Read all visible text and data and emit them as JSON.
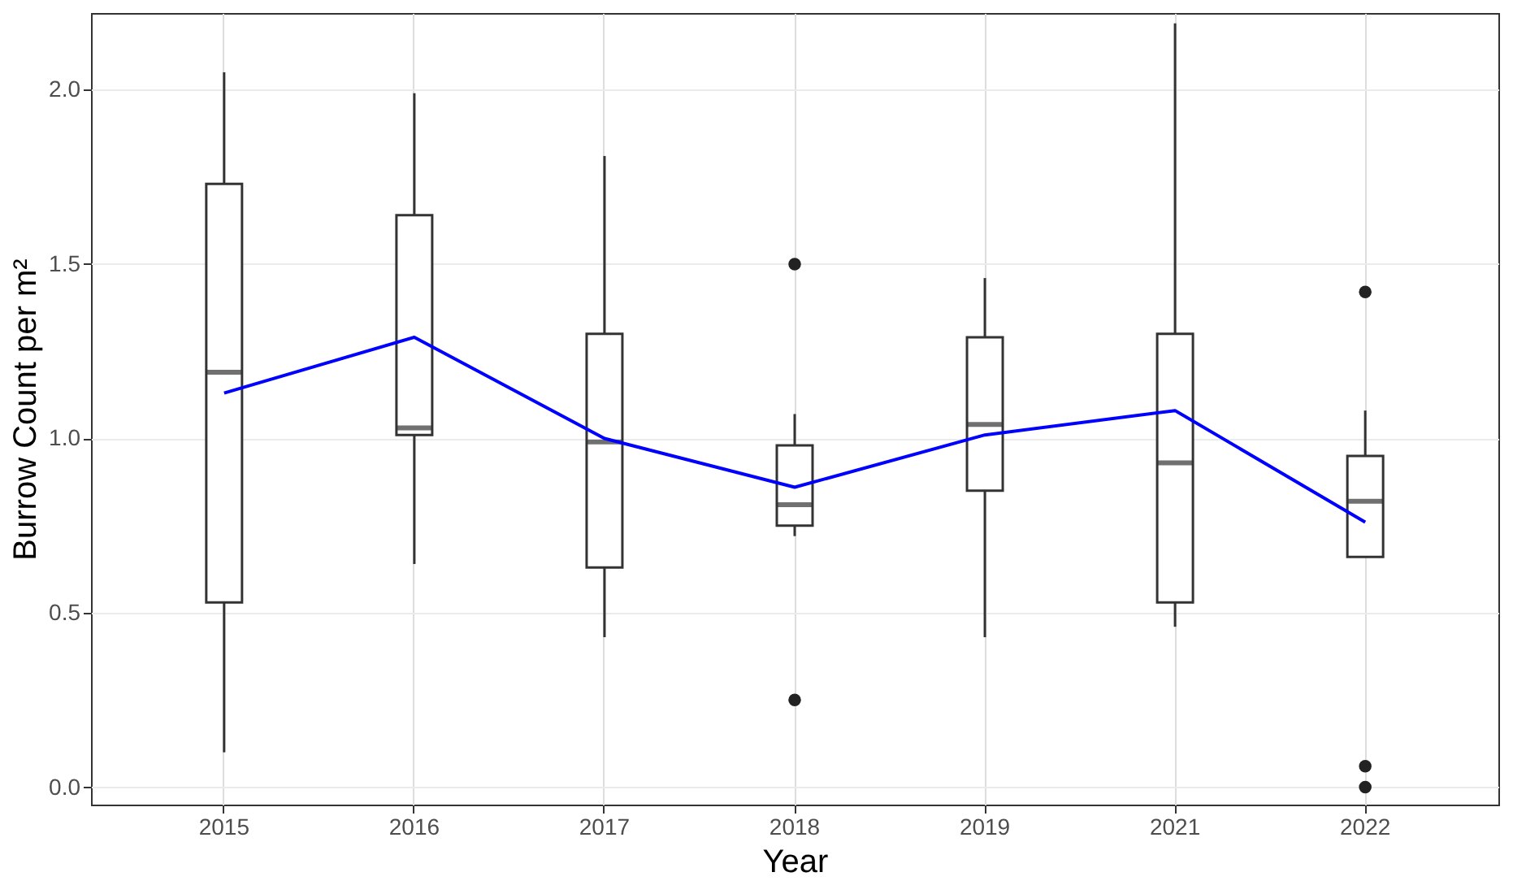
{
  "chart_data": {
    "type": "box",
    "xlabel": "Year",
    "ylabel": "Burrow Count per m²",
    "categories": [
      "2015",
      "2016",
      "2017",
      "2018",
      "2019",
      "2021",
      "2022"
    ],
    "boxes": [
      {
        "low": 0.1,
        "q1": 0.53,
        "median": 1.19,
        "q3": 1.73,
        "high": 2.05
      },
      {
        "low": 0.64,
        "q1": 1.01,
        "median": 1.03,
        "q3": 1.64,
        "high": 1.99
      },
      {
        "low": 0.43,
        "q1": 0.63,
        "median": 0.99,
        "q3": 1.3,
        "high": 1.81
      },
      {
        "low": 0.72,
        "q1": 0.75,
        "median": 0.81,
        "q3": 0.98,
        "high": 1.07,
        "outliers": [
          1.5,
          0.25
        ]
      },
      {
        "low": 0.43,
        "q1": 0.85,
        "median": 1.04,
        "q3": 1.29,
        "high": 1.46
      },
      {
        "low": 0.46,
        "q1": 0.53,
        "median": 0.93,
        "q3": 1.3,
        "high": 2.19
      },
      {
        "low": 0.66,
        "q1": 0.66,
        "median": 0.82,
        "q3": 0.95,
        "high": 1.08,
        "outliers": [
          1.42,
          0.06,
          0.0
        ]
      }
    ],
    "series": [
      {
        "type": "line",
        "color": "#0000ff",
        "values": [
          1.13,
          1.29,
          1.0,
          0.86,
          1.01,
          1.08,
          0.76
        ]
      }
    ],
    "ylim": [
      -0.05,
      2.22
    ],
    "yticks": [
      {
        "value": 0,
        "label": "0.0"
      },
      {
        "value": 0.5,
        "label": "0.5"
      },
      {
        "value": 1,
        "label": "1.0"
      },
      {
        "value": 1.5,
        "label": "1.5"
      },
      {
        "value": 2,
        "label": "2.0"
      }
    ],
    "grid": true
  }
}
